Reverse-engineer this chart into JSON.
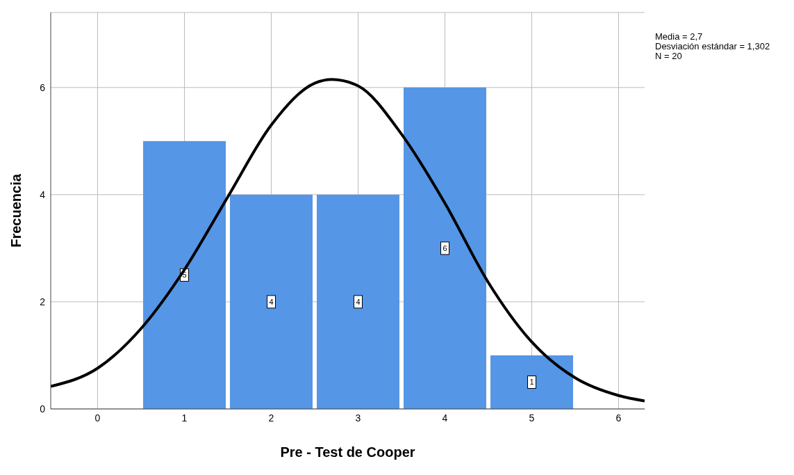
{
  "chart_data": {
    "type": "histogram",
    "xlabel": "Pre - Test de Cooper",
    "ylabel": "Frecuencia",
    "bins": [
      0.5,
      1.5,
      2.5,
      3.5,
      4.5,
      5.5
    ],
    "values": [
      5,
      4,
      4,
      6,
      1
    ],
    "color": "#5596e6",
    "value_labels": [
      "5",
      "4",
      "4",
      "6",
      "1"
    ],
    "series": [
      {
        "type": "line",
        "color": "#000000",
        "x": [
          -0.54,
          0,
          0.5,
          1,
          1.5,
          2,
          2.5,
          2.7,
          3,
          3.5,
          4,
          4.5,
          5,
          5.5,
          6,
          6.3
        ],
        "values": [
          0.42,
          0.76,
          1.5,
          2.6,
          3.96,
          5.3,
          6.08,
          6.15,
          6.03,
          5.13,
          3.84,
          2.36,
          1.25,
          0.58,
          0.25,
          0.15
        ]
      }
    ],
    "xlim": [
      -0.54,
      6.3
    ],
    "ylim": [
      0,
      7.4
    ],
    "xticks": [
      0,
      1,
      2,
      3,
      4,
      5,
      6
    ],
    "yticks": [
      0,
      2,
      4,
      6
    ],
    "grid": true,
    "annotations": [
      "Media = 2,7",
      "Desviación estándar = 1,302",
      "N = 20"
    ]
  }
}
